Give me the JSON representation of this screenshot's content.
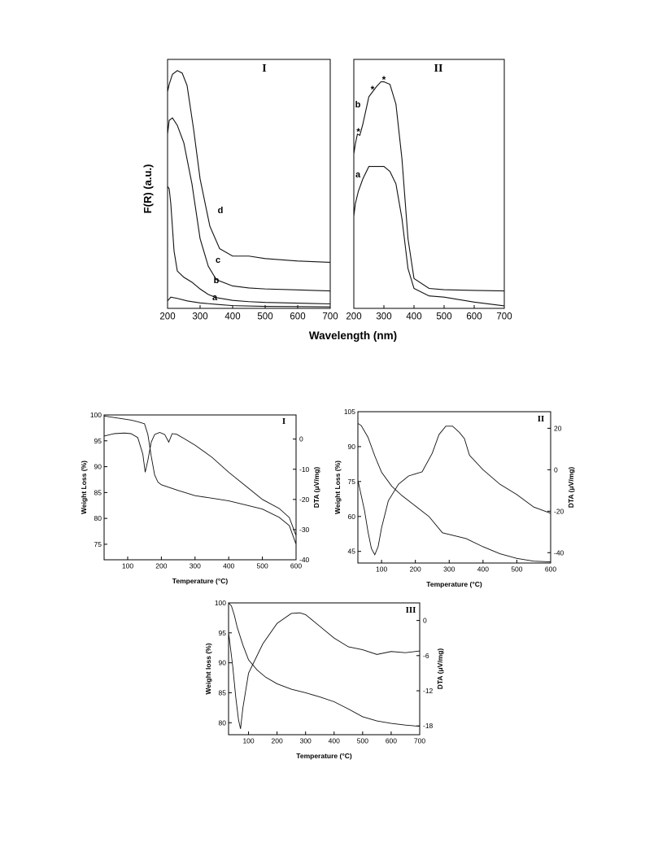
{
  "chart_data": [
    {
      "type": "line",
      "panel_label": "I",
      "ylabel": "F(R) (a.u.)",
      "xlabel": "",
      "xlim": [
        200,
        700
      ],
      "ylim": [
        0,
        1
      ],
      "xticks": [
        "200",
        "300",
        "400",
        "500",
        "600",
        "700"
      ],
      "yticks": [],
      "grid": false,
      "series": [
        {
          "name": "a",
          "x": [
            200,
            210,
            230,
            260,
            300,
            350,
            400,
            500,
            700
          ],
          "y": [
            0.03,
            0.045,
            0.04,
            0.03,
            0.022,
            0.016,
            0.011,
            0.008,
            0.006
          ]
        },
        {
          "name": "b",
          "x": [
            200,
            205,
            210,
            220,
            230,
            250,
            275,
            300,
            325,
            350,
            400,
            450,
            500,
            700
          ],
          "y": [
            0.49,
            0.48,
            0.42,
            0.23,
            0.15,
            0.125,
            0.105,
            0.078,
            0.056,
            0.043,
            0.032,
            0.027,
            0.024,
            0.018
          ]
        },
        {
          "name": "c",
          "x": [
            200,
            205,
            215,
            230,
            250,
            275,
            300,
            325,
            350,
            400,
            450,
            500,
            600,
            700
          ],
          "y": [
            0.7,
            0.755,
            0.765,
            0.735,
            0.665,
            0.5,
            0.28,
            0.17,
            0.115,
            0.09,
            0.082,
            0.078,
            0.074,
            0.07
          ]
        },
        {
          "name": "d",
          "x": [
            200,
            205,
            215,
            230,
            245,
            260,
            280,
            300,
            330,
            360,
            400,
            450,
            500,
            600,
            700
          ],
          "y": [
            0.87,
            0.9,
            0.94,
            0.955,
            0.945,
            0.895,
            0.72,
            0.52,
            0.33,
            0.24,
            0.21,
            0.21,
            0.2,
            0.19,
            0.185
          ]
        }
      ],
      "markers": []
    },
    {
      "type": "line",
      "panel_label": "II",
      "ylabel": "",
      "xlabel": "Wavelength (nm)",
      "xlim": [
        200,
        700
      ],
      "ylim": [
        0,
        1
      ],
      "xticks": [
        "200",
        "300",
        "400",
        "500",
        "600",
        "700"
      ],
      "yticks": [],
      "grid": false,
      "series": [
        {
          "name": "a",
          "x": [
            200,
            205,
            215,
            230,
            250,
            280,
            300,
            320,
            340,
            360,
            380,
            400,
            450,
            500,
            600,
            700
          ],
          "y": [
            0.37,
            0.42,
            0.47,
            0.52,
            0.57,
            0.57,
            0.57,
            0.55,
            0.5,
            0.36,
            0.16,
            0.08,
            0.05,
            0.045,
            0.025,
            0.01
          ]
        },
        {
          "name": "b",
          "x": [
            200,
            205,
            212,
            220,
            230,
            250,
            275,
            290,
            300,
            320,
            340,
            360,
            380,
            400,
            450,
            500,
            600,
            700
          ],
          "y": [
            0.62,
            0.66,
            0.7,
            0.695,
            0.74,
            0.85,
            0.89,
            0.91,
            0.91,
            0.9,
            0.82,
            0.6,
            0.28,
            0.12,
            0.08,
            0.075,
            0.072,
            0.07
          ]
        }
      ],
      "markers": [
        {
          "symbol": "*",
          "x": 215,
          "y": 0.715
        },
        {
          "symbol": "*",
          "x": 262,
          "y": 0.885
        },
        {
          "symbol": "*",
          "x": 300,
          "y": 0.925
        }
      ]
    },
    {
      "type": "line",
      "panel_label": "I",
      "xlabel": "Temperature (°C)",
      "ylabel": "Weight Loss (%)",
      "y2label": "DTA (μV/mg)",
      "xlim": [
        30,
        600
      ],
      "ylim": [
        72,
        100
      ],
      "y2lim": [
        -40,
        8
      ],
      "xticks": [
        "100",
        "200",
        "300",
        "400",
        "500",
        "600"
      ],
      "yticks": [
        "75",
        "80",
        "85",
        "90",
        "95",
        "100"
      ],
      "y2ticks": [
        "-40",
        "-30",
        "-20",
        "-10",
        "0"
      ],
      "grid": false,
      "series": [
        {
          "name": "",
          "axis": "left",
          "x": [
            30,
            60,
            90,
            110,
            130,
            150,
            160,
            170,
            180,
            190,
            200,
            250,
            300,
            350,
            400,
            450,
            500,
            550,
            580,
            600
          ],
          "y": [
            99.8,
            99.5,
            99.2,
            99.0,
            98.7,
            98.3,
            96.2,
            92.0,
            88.4,
            87.0,
            86.5,
            85.4,
            84.4,
            83.9,
            83.4,
            82.6,
            81.8,
            80.2,
            78.6,
            75.0
          ]
        },
        {
          "name": "",
          "axis": "right",
          "x": [
            30,
            60,
            90,
            110,
            130,
            145,
            152,
            160,
            170,
            180,
            195,
            210,
            222,
            232,
            245,
            270,
            300,
            350,
            400,
            450,
            500,
            550,
            580,
            600
          ],
          "y": [
            1.0,
            1.8,
            2.0,
            1.8,
            0.5,
            -5.0,
            -11.0,
            -7.0,
            -1.0,
            1.5,
            2.2,
            1.5,
            -1.0,
            1.8,
            1.6,
            0.0,
            -2.0,
            -6.0,
            -11.0,
            -15.5,
            -20.0,
            -23.0,
            -26.0,
            -32.0
          ]
        }
      ]
    },
    {
      "type": "line",
      "panel_label": "II",
      "xlabel": "Temperature (°C)",
      "ylabel": "Weight Loss (%)",
      "y2label": "DTA (μV/mg)",
      "xlim": [
        30,
        600
      ],
      "ylim": [
        40,
        105
      ],
      "y2lim": [
        -45,
        28
      ],
      "xticks": [
        "100",
        "200",
        "300",
        "400",
        "500",
        "600"
      ],
      "yticks": [
        "45",
        "60",
        "75",
        "90",
        "105"
      ],
      "y2ticks": [
        "-40",
        "-20",
        "0",
        "20"
      ],
      "grid": false,
      "series": [
        {
          "name": "",
          "axis": "left",
          "x": [
            30,
            40,
            60,
            80,
            100,
            130,
            160,
            200,
            240,
            280,
            350,
            400,
            450,
            500,
            550,
            600
          ],
          "y": [
            100.0,
            99.0,
            94.0,
            86.0,
            79.0,
            73.0,
            69.0,
            64.5,
            60.0,
            53.0,
            50.5,
            47.0,
            44.0,
            42.0,
            40.8,
            40.5
          ]
        },
        {
          "name": "",
          "axis": "right",
          "x": [
            30,
            50,
            60,
            70,
            80,
            90,
            100,
            120,
            150,
            180,
            220,
            250,
            270,
            290,
            310,
            330,
            345,
            360,
            400,
            450,
            500,
            550,
            600
          ],
          "y": [
            -5.0,
            -20.0,
            -30.0,
            -38.0,
            -41.0,
            -37.0,
            -28.0,
            -15.0,
            -7.0,
            -3.0,
            -1.0,
            8.0,
            17.0,
            21.0,
            21.0,
            18.0,
            15.0,
            7.0,
            0.0,
            -7.0,
            -12.0,
            -18.0,
            -21.0
          ]
        }
      ]
    },
    {
      "type": "line",
      "panel_label": "III",
      "xlabel": "Temperature (°C)",
      "ylabel": "Weight loss (%)",
      "y2label": "DTA (μV/mg)",
      "xlim": [
        30,
        700
      ],
      "ylim": [
        78,
        100
      ],
      "y2lim": [
        -19.5,
        3
      ],
      "xticks": [
        "100",
        "200",
        "300",
        "400",
        "500",
        "600",
        "700"
      ],
      "yticks": [
        "80",
        "85",
        "90",
        "95",
        "100"
      ],
      "y2ticks": [
        "-18",
        "-12",
        "-6",
        "0"
      ],
      "grid": false,
      "series": [
        {
          "name": "",
          "axis": "left",
          "x": [
            30,
            40,
            50,
            60,
            80,
            100,
            130,
            160,
            200,
            250,
            300,
            350,
            400,
            450,
            500,
            550,
            600,
            650,
            700
          ],
          "y": [
            100.0,
            99.5,
            98.0,
            96.0,
            93.0,
            90.5,
            88.8,
            87.6,
            86.5,
            85.6,
            85.0,
            84.3,
            83.5,
            82.3,
            81.0,
            80.3,
            79.9,
            79.6,
            79.4
          ]
        },
        {
          "name": "",
          "axis": "right",
          "x": [
            30,
            45,
            55,
            65,
            72,
            80,
            100,
            150,
            200,
            250,
            280,
            300,
            350,
            400,
            450,
            500,
            550,
            600,
            650,
            700
          ],
          "y": [
            -2.0,
            -8.0,
            -13.0,
            -17.0,
            -18.5,
            -15.0,
            -9.0,
            -4.0,
            -0.5,
            1.2,
            1.3,
            1.0,
            -1.0,
            -3.0,
            -4.5,
            -5.0,
            -5.8,
            -5.3,
            -5.5,
            -5.2
          ]
        }
      ]
    }
  ]
}
